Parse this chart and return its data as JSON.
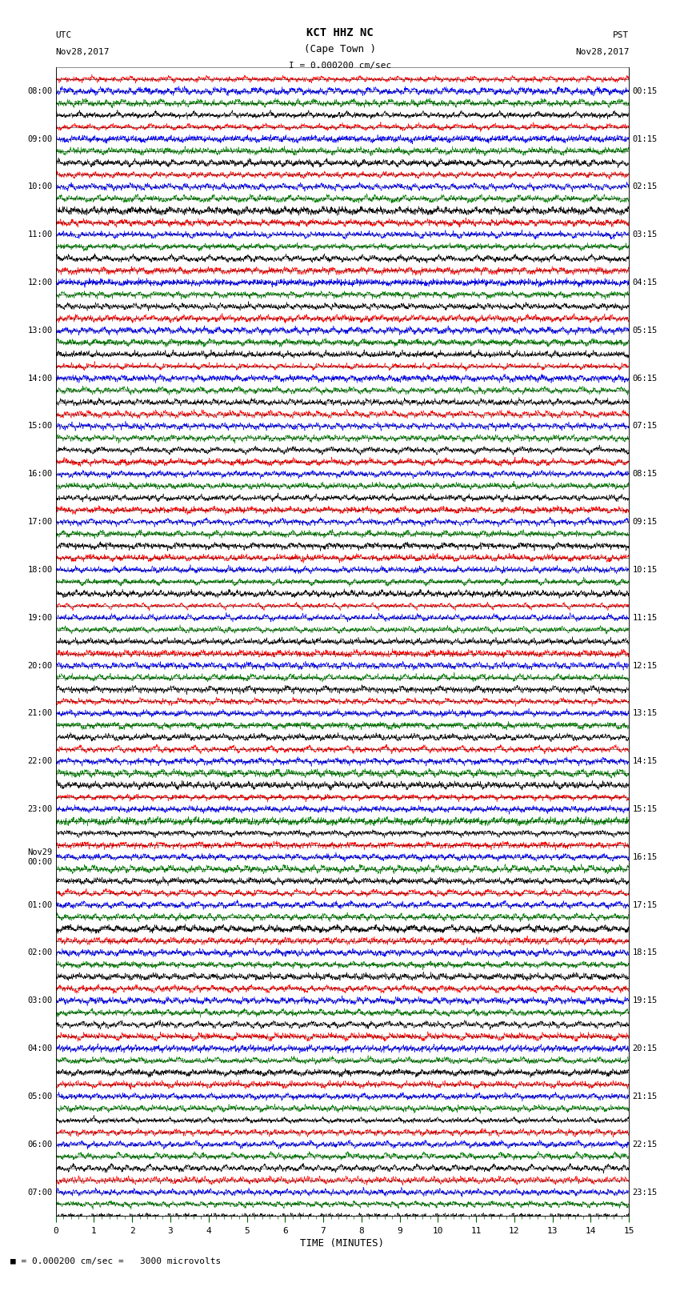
{
  "title_line1": "KCT HHZ NC",
  "title_line2": "(Cape Town )",
  "scale_text": "I = 0.000200 cm/sec",
  "bottom_text": "■ = 0.000200 cm/sec =   3000 microvolts",
  "xlabel": "TIME (MINUTES)",
  "left_label_top": "UTC",
  "left_label_date": "Nov28,2017",
  "right_label_top": "PST",
  "right_label_date": "Nov28,2017",
  "utc_times": [
    "08:00",
    "09:00",
    "10:00",
    "11:00",
    "12:00",
    "13:00",
    "14:00",
    "15:00",
    "16:00",
    "17:00",
    "18:00",
    "19:00",
    "20:00",
    "21:00",
    "22:00",
    "23:00",
    "Nov29\n00:00",
    "01:00",
    "02:00",
    "03:00",
    "04:00",
    "05:00",
    "06:00",
    "07:00"
  ],
  "pst_times": [
    "00:15",
    "01:15",
    "02:15",
    "03:15",
    "04:15",
    "05:15",
    "06:15",
    "07:15",
    "08:15",
    "09:15",
    "10:15",
    "11:15",
    "12:15",
    "13:15",
    "14:15",
    "15:15",
    "16:15",
    "17:15",
    "18:15",
    "19:15",
    "20:15",
    "21:15",
    "22:15",
    "23:15"
  ],
  "num_rows": 24,
  "sub_traces": 4,
  "minutes_per_row": 15,
  "samples_per_minute": 200,
  "trace_colors": [
    "red",
    "blue",
    "green",
    "black"
  ],
  "background_color": "white",
  "figsize": [
    8.5,
    16.13
  ],
  "dpi": 100,
  "amplitude_scale": 0.42,
  "seed": 42
}
